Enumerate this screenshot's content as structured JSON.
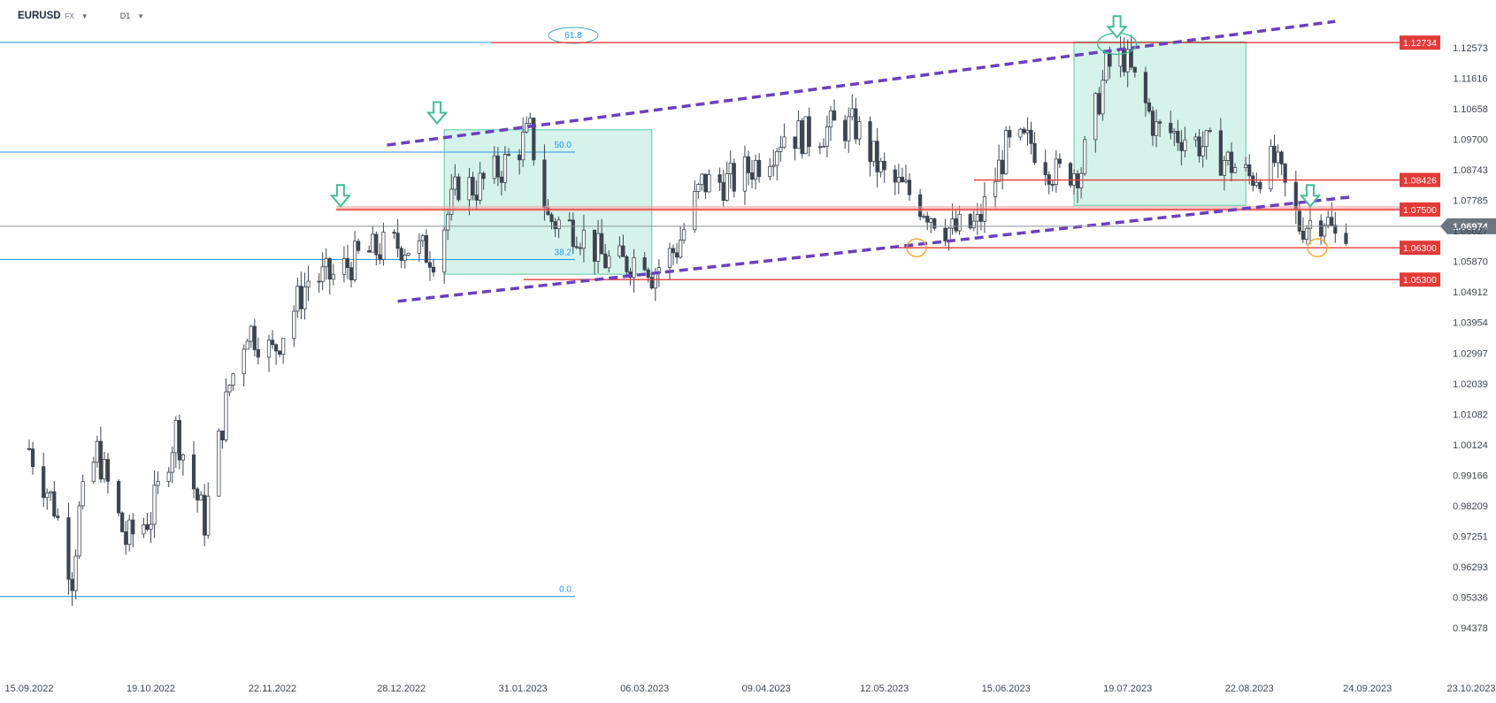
{
  "header": {
    "symbol": "EURUSD",
    "market": "FX",
    "timeframe": "D1"
  },
  "icons": [
    "caret-down-icon",
    "arrow-down-icon"
  ],
  "colors": {
    "bull_candle": "#ffffff",
    "bear_candle": "#3d4550",
    "wick": "#3d4550",
    "resistance": "#e53935",
    "resistance_label_bg": "#e53935",
    "channel": "#6a3fc0",
    "fib": "#2196f3",
    "zone_fill": "#b9ebdc",
    "zone_border": "#5ccbaa",
    "signal_arrow": "#3fbf93",
    "circle_orange": "#f5a623",
    "price_tag": "#6b7580"
  },
  "chart_data": {
    "type": "candlestick",
    "instrument": "EURUSD",
    "timeframe": "D1",
    "x_tick_labels": [
      "15.09.2022",
      "19.10.2022",
      "22.11.2022",
      "28.12.2022",
      "31.01.2023",
      "06.03.2023",
      "09.04.2023",
      "12.05.2023",
      "15.06.2023",
      "19.07.2023",
      "22.08.2023",
      "24.09.2023",
      "23.10.2023"
    ],
    "y_tick_labels": [
      "1.12573",
      "1.11616",
      "1.10658",
      "1.09700",
      "1.08743",
      "1.07785",
      "1.06827",
      "1.05870",
      "1.04912",
      "1.03954",
      "1.02997",
      "1.02039",
      "1.01082",
      "1.00124",
      "0.99166",
      "0.98209",
      "0.97251",
      "0.96293",
      "0.95336",
      "0.94378"
    ],
    "ylim": [
      0.943,
      1.135
    ],
    "grid": false,
    "current_price": "1.06974",
    "price_series": [
      [
        "15.09.2022",
        1.0
      ],
      [
        "22.09.2022",
        0.982
      ],
      [
        "27.09.2022",
        0.96
      ],
      [
        "29.09.2022",
        0.98
      ],
      [
        "04.10.2022",
        0.999
      ],
      [
        "12.10.2022",
        0.971
      ],
      [
        "19.10.2022",
        0.979
      ],
      [
        "26.10.2022",
        1.006
      ],
      [
        "03.11.2022",
        0.977
      ],
      [
        "10.11.2022",
        1.02
      ],
      [
        "15.11.2022",
        1.038
      ],
      [
        "22.11.2022",
        1.03
      ],
      [
        "02.12.2022",
        1.053
      ],
      [
        "09.12.2022",
        1.054
      ],
      [
        "16.12.2022",
        1.06
      ],
      [
        "23.12.2022",
        1.063
      ],
      [
        "28.12.2022",
        1.064
      ],
      [
        "06.01.2023",
        1.061
      ],
      [
        "13.01.2023",
        1.083
      ],
      [
        "18.01.2023",
        1.082
      ],
      [
        "25.01.2023",
        1.088
      ],
      [
        "02.02.2023",
        1.099
      ],
      [
        "07.02.2023",
        1.072
      ],
      [
        "15.02.2023",
        1.069
      ],
      [
        "23.02.2023",
        1.059
      ],
      [
        "28.02.2023",
        1.058
      ],
      [
        "06.03.2023",
        1.061
      ],
      [
        "08.03.2023",
        1.055
      ],
      [
        "15.03.2023",
        1.063
      ],
      [
        "22.03.2023",
        1.083
      ],
      [
        "31.03.2023",
        1.084
      ],
      [
        "09.04.2023",
        1.092
      ],
      [
        "14.04.2023",
        1.099
      ],
      [
        "21.04.2023",
        1.098
      ],
      [
        "28.04.2023",
        1.101
      ],
      [
        "04.05.2023",
        1.101
      ],
      [
        "12.05.2023",
        1.085
      ],
      [
        "19.05.2023",
        1.08
      ],
      [
        "31.05.2023",
        1.068
      ],
      [
        "07.06.2023",
        1.07
      ],
      [
        "15.06.2023",
        1.094
      ],
      [
        "22.06.2023",
        1.096
      ],
      [
        "29.06.2023",
        1.086
      ],
      [
        "06.07.2023",
        1.088
      ],
      [
        "13.07.2023",
        1.119
      ],
      [
        "18.07.2023",
        1.123
      ],
      [
        "19.07.2023",
        1.12
      ],
      [
        "27.07.2023",
        1.1
      ],
      [
        "04.08.2023",
        1.098
      ],
      [
        "11.08.2023",
        1.094
      ],
      [
        "22.08.2023",
        1.085
      ],
      [
        "29.08.2023",
        1.09
      ],
      [
        "05.09.2023",
        1.07
      ],
      [
        "12.09.2023",
        1.073
      ],
      [
        "15.09.2023",
        1.066
      ],
      [
        "18.09.2023",
        1.07
      ]
    ],
    "horizontal_levels": [
      {
        "label": "1.12734",
        "value": 1.12734
      },
      {
        "label": "1.08426",
        "value": 1.08426
      },
      {
        "label": "1.07500",
        "value": 1.075
      },
      {
        "label": "1.06300",
        "value": 1.063
      },
      {
        "label": "1.05300",
        "value": 1.053
      }
    ],
    "fibonacci": [
      {
        "label": "61.8",
        "value": 1.1274
      },
      {
        "label": "50.0",
        "value": 1.093
      },
      {
        "label": "38.2",
        "value": 1.0593
      },
      {
        "label": "0.0",
        "value": 0.9536
      }
    ],
    "channel_lines": [
      {
        "from": [
          "24.12.2022",
          1.0952
        ],
        "to": [
          "15.09.2023",
          1.134
        ]
      },
      {
        "from": [
          "27.12.2022",
          1.0462
        ],
        "to": [
          "20.09.2023",
          1.079
        ]
      }
    ],
    "zones": [
      {
        "from": "09.01.2023",
        "to": "08.03.2023",
        "low": 1.0547,
        "high": 1.1
      },
      {
        "from": "04.07.2023",
        "to": "21.08.2023",
        "low": 1.0763,
        "high": 1.1276
      }
    ],
    "signal_arrows": [
      {
        "date": "11.12.2022",
        "value": 1.076
      },
      {
        "date": "07.01.2023",
        "value": 1.102
      },
      {
        "date": "16.07.2023",
        "value": 1.129
      },
      {
        "date": "08.09.2023",
        "value": 1.076
      }
    ],
    "highlight_circles": [
      {
        "date": "16.07.2023",
        "value": 1.127,
        "color": "teal"
      },
      {
        "date": "21.05.2023",
        "value": 1.063,
        "color": "orange"
      },
      {
        "date": "10.09.2023",
        "value": 1.063,
        "color": "orange"
      }
    ]
  }
}
